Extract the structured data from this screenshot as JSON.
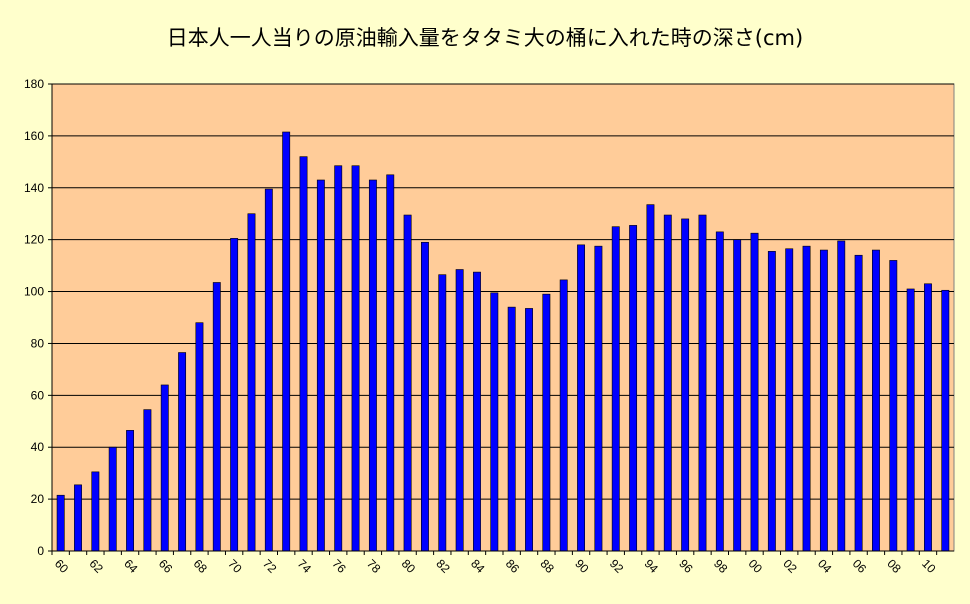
{
  "chart_data": {
    "type": "bar",
    "title": "日本人一人当りの原油輸入量をタタミ大の桶に入れた時の深さ(cm)",
    "xlabel": "",
    "ylabel": "",
    "ylim": [
      0,
      180
    ],
    "yticks": [
      0,
      20,
      40,
      60,
      80,
      100,
      120,
      140,
      160,
      180
    ],
    "grid": true,
    "legend": "none",
    "plot_background": "#ffcc99",
    "page_background": "#ffffcc",
    "bar_color": "#0000ff",
    "bar_edge_color": "#000000",
    "categories": [
      "60",
      "61",
      "62",
      "63",
      "64",
      "65",
      "66",
      "67",
      "68",
      "69",
      "70",
      "71",
      "72",
      "73",
      "74",
      "75",
      "76",
      "77",
      "78",
      "79",
      "80",
      "81",
      "82",
      "83",
      "84",
      "85",
      "86",
      "87",
      "88",
      "89",
      "90",
      "91",
      "92",
      "93",
      "94",
      "95",
      "96",
      "97",
      "98",
      "99",
      "00",
      "01",
      "02",
      "03",
      "04",
      "05",
      "06",
      "07",
      "08",
      "09",
      "10",
      "11"
    ],
    "tick_labels": [
      "60",
      "62",
      "64",
      "66",
      "68",
      "70",
      "72",
      "74",
      "76",
      "78",
      "80",
      "82",
      "84",
      "86",
      "88",
      "90",
      "92",
      "94",
      "96",
      "98",
      "00",
      "02",
      "04",
      "06",
      "08",
      "10"
    ],
    "values": [
      21.5,
      25.5,
      30.5,
      40,
      46.5,
      54.5,
      64,
      76.5,
      88,
      103.5,
      120.5,
      130,
      139.5,
      161.5,
      152,
      143,
      148.5,
      148.5,
      143,
      145,
      129.5,
      119,
      106.5,
      108.5,
      107.5,
      99.5,
      94,
      93.5,
      99,
      104.5,
      118,
      117.5,
      125,
      125.5,
      133.5,
      129.5,
      128,
      129.5,
      123,
      120,
      122.5,
      115.5,
      116.5,
      117.5,
      116,
      119.5,
      114,
      116,
      112,
      101,
      103,
      100.5
    ]
  }
}
